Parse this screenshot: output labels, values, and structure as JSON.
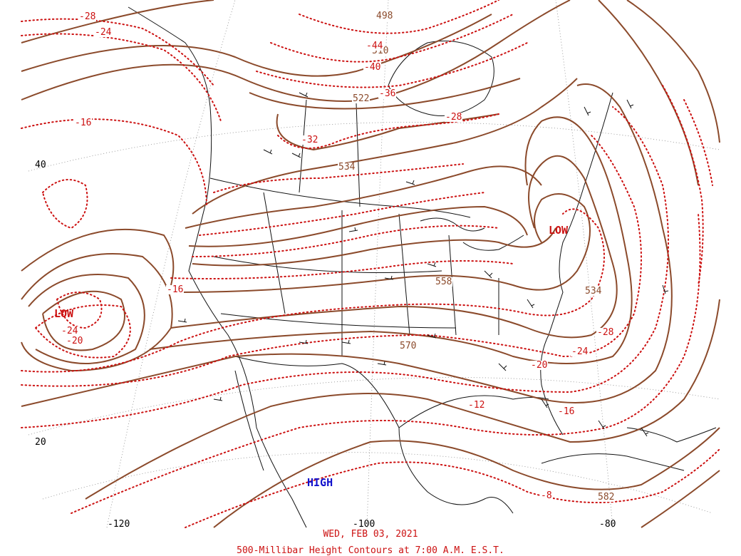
{
  "footer": {
    "date": "WED, FEB 03, 2021",
    "title": "500-Millibar Height Contours at 7:00 A.M. E.S.T."
  },
  "colors": {
    "height_contour": "#8B4A2B",
    "temperature_contour": "#cc1111",
    "low_label": "#cc1111",
    "high_label": "#1111cc",
    "coastline": "#000000"
  },
  "pressure_systems": [
    {
      "type": "low",
      "label": "LOW"
    },
    {
      "type": "low",
      "label": "LOW"
    },
    {
      "type": "high",
      "label": "HIGH"
    }
  ],
  "height_labels": [
    "498",
    "510",
    "522",
    "534",
    "558",
    "570",
    "534",
    "582"
  ],
  "temperature_labels": [
    "-28",
    "-24",
    "-16",
    "-44",
    "-40",
    "-36",
    "-32",
    "-28",
    "-16",
    "-24",
    "-20",
    "-28",
    "-24",
    "-20",
    "-12",
    "-16",
    "-8"
  ],
  "lat_labels": [
    "40",
    "20"
  ],
  "lon_labels": [
    "-120",
    "-100",
    "-80"
  ]
}
